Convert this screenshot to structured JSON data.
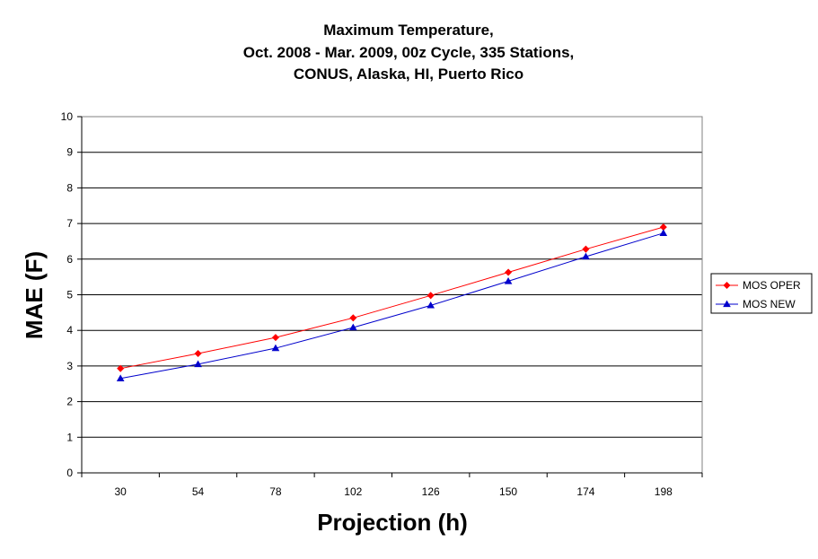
{
  "chart_data": {
    "type": "line",
    "title": [
      "Maximum Temperature,",
      "Oct. 2008 - Mar. 2009, 00z Cycle, 335 Stations,",
      "CONUS, Alaska, HI, Puerto Rico"
    ],
    "xlabel": "Projection (h)",
    "ylabel": "MAE (F)",
    "categories": [
      "30",
      "54",
      "78",
      "102",
      "126",
      "150",
      "174",
      "198"
    ],
    "ylim": [
      0,
      10
    ],
    "yticks": [
      "0",
      "1",
      "2",
      "3",
      "4",
      "5",
      "6",
      "7",
      "8",
      "9",
      "10"
    ],
    "grid": true,
    "legend_position": "right",
    "series": [
      {
        "name": "MOS OPER",
        "color": "#ff0000",
        "marker": "diamond",
        "values": [
          2.93,
          3.35,
          3.8,
          4.35,
          4.98,
          5.63,
          6.28,
          6.9
        ]
      },
      {
        "name": "MOS NEW",
        "color": "#0000cc",
        "marker": "triangle",
        "values": [
          2.65,
          3.05,
          3.5,
          4.08,
          4.7,
          5.38,
          6.07,
          6.73
        ]
      }
    ]
  }
}
